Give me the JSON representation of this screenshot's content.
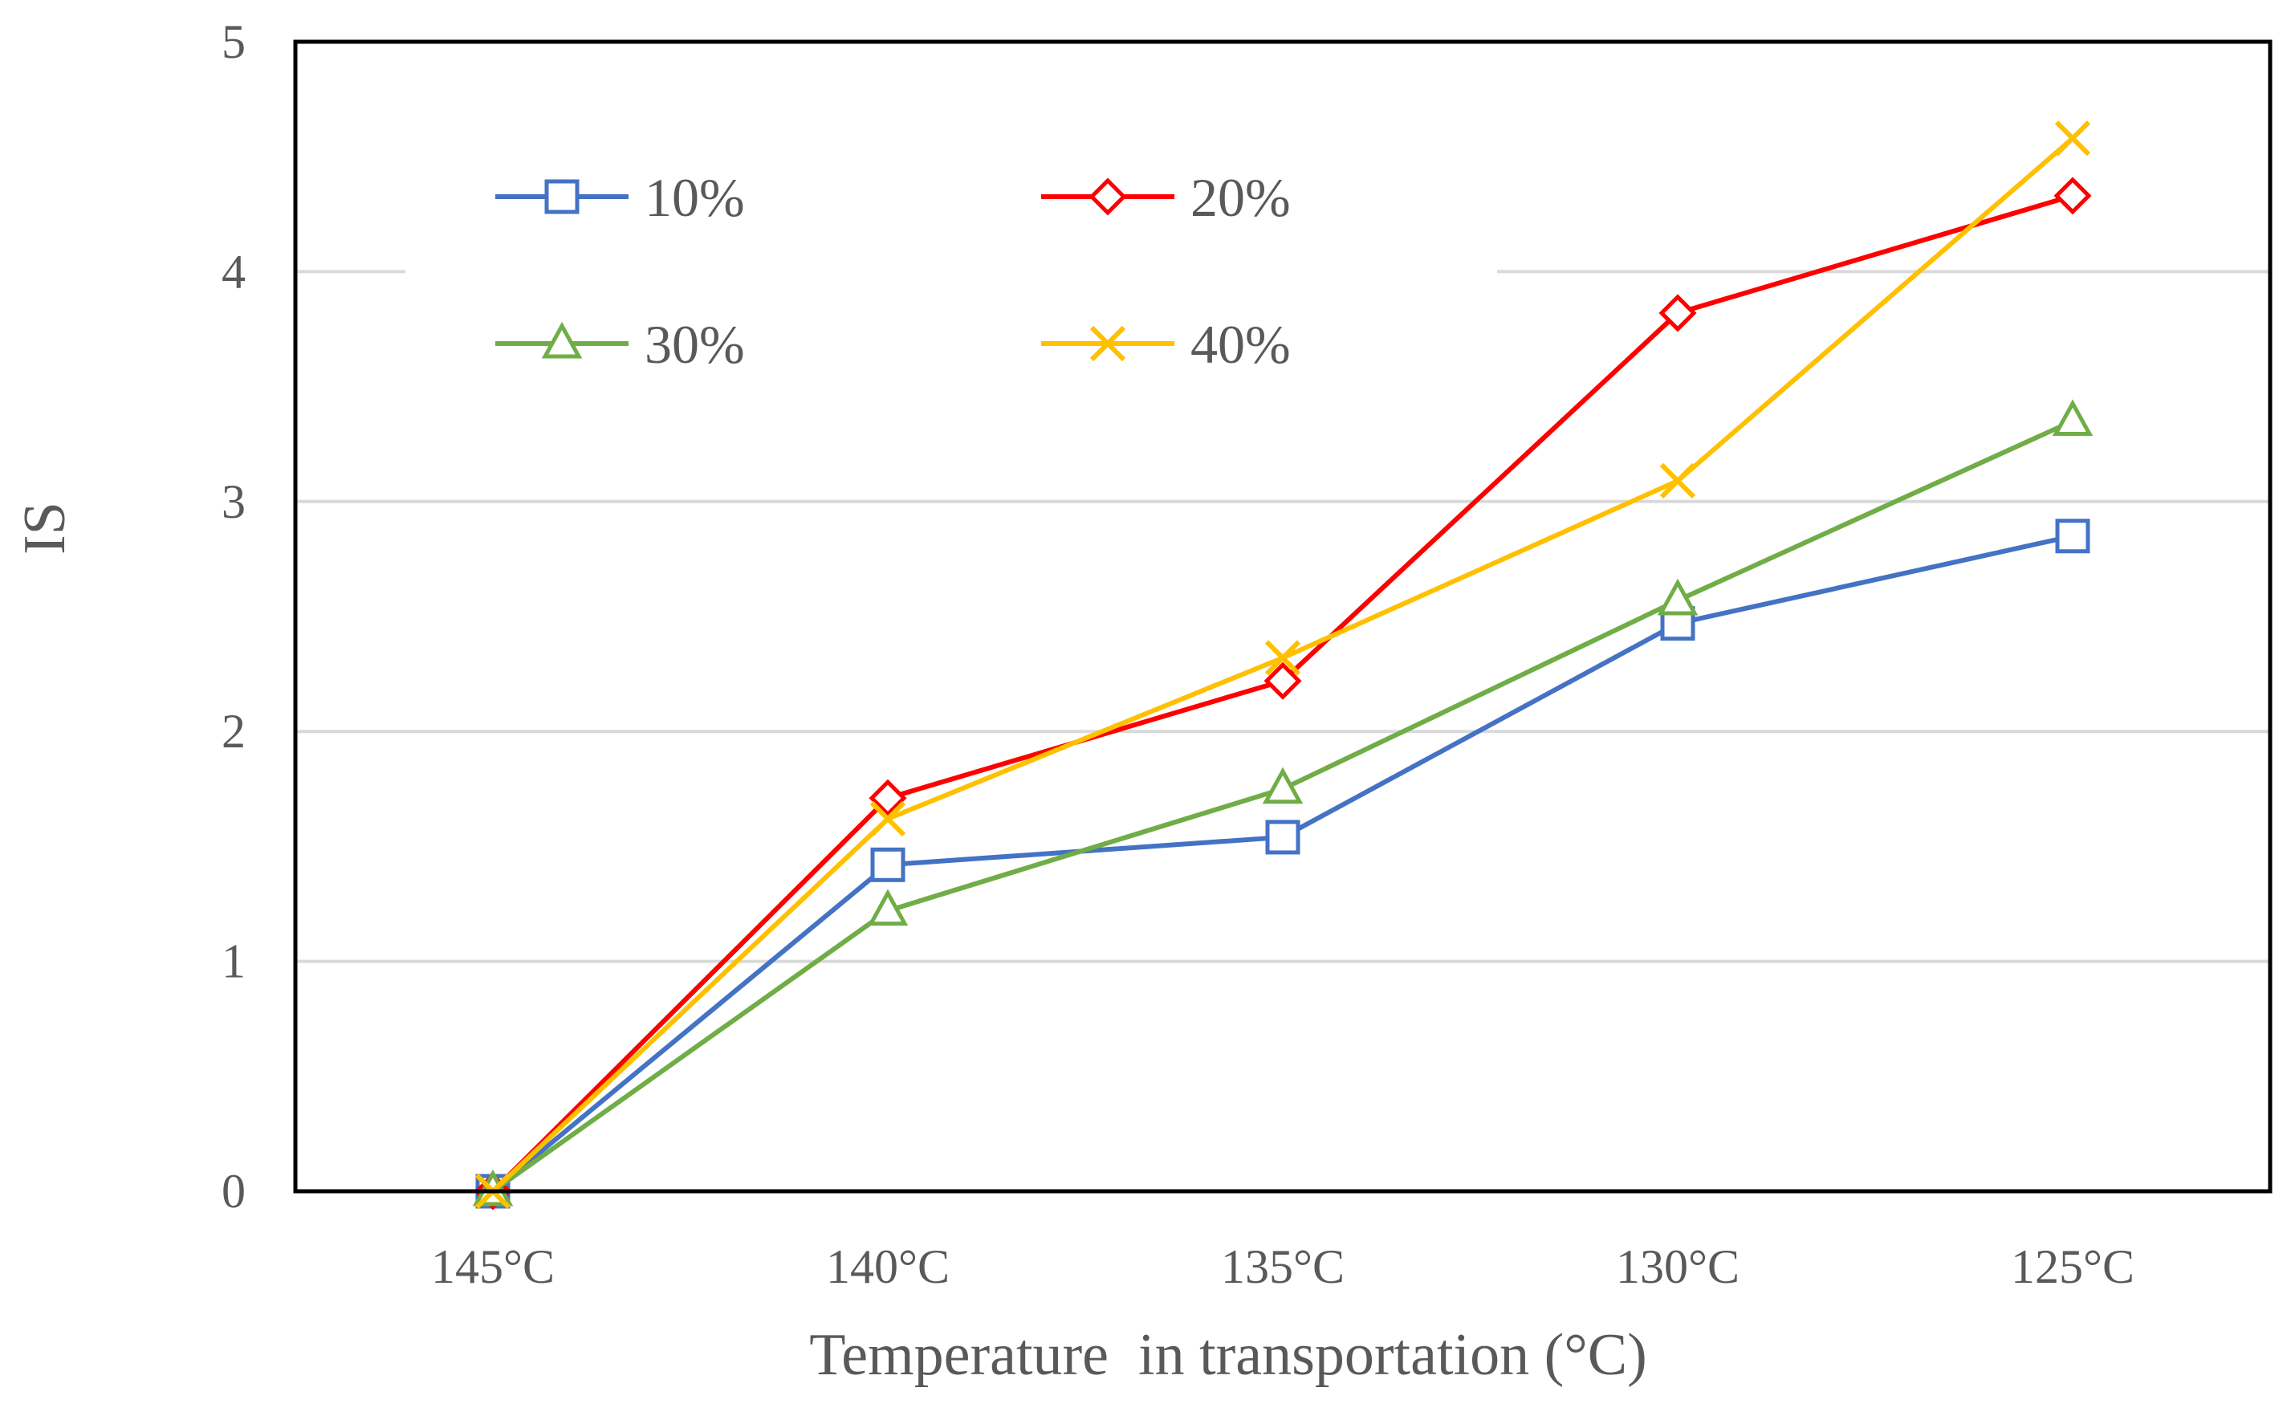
{
  "chart_data": {
    "type": "line",
    "title": "",
    "xlabel": "Temperature  in transportation (°C)",
    "ylabel": "IS",
    "categories": [
      "145°C",
      "140°C",
      "135°C",
      "130°C",
      "125°C"
    ],
    "ylim": [
      0,
      5
    ],
    "yticks": [
      "0",
      "1",
      "2",
      "3",
      "4",
      "5"
    ],
    "grid": true,
    "legend_position": "top-left",
    "series": [
      {
        "name": "10%",
        "color": "#4472C4",
        "marker": "square",
        "values": [
          0,
          1.42,
          1.54,
          2.47,
          2.85
        ]
      },
      {
        "name": "20%",
        "color": "#FF0000",
        "marker": "diamond",
        "values": [
          0,
          1.71,
          2.22,
          3.82,
          4.33
        ]
      },
      {
        "name": "30%",
        "color": "#70AD47",
        "marker": "triangle",
        "values": [
          0,
          1.22,
          1.75,
          2.57,
          3.35
        ]
      },
      {
        "name": "40%",
        "color": "#FFC000",
        "marker": "x",
        "values": [
          0,
          1.62,
          2.32,
          3.09,
          4.58
        ]
      }
    ]
  }
}
